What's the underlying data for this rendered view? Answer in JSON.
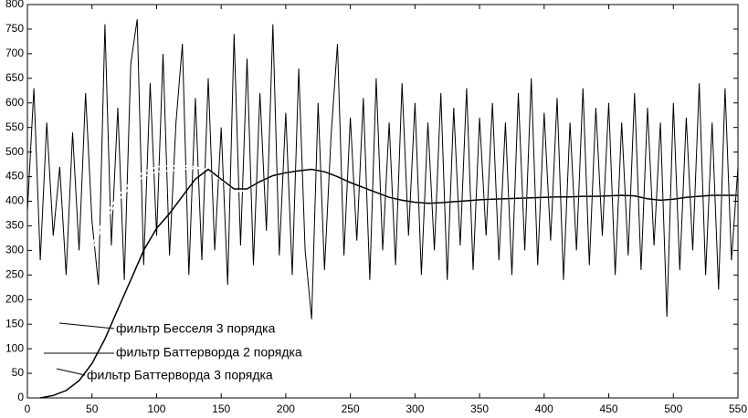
{
  "chart_data": {
    "type": "line",
    "xlim": [
      0,
      550
    ],
    "xticks": [
      0,
      50,
      100,
      150,
      200,
      250,
      300,
      350,
      400,
      450,
      500,
      550
    ],
    "ylim": [
      0,
      800
    ],
    "yticks": [
      0,
      50,
      100,
      150,
      200,
      250,
      300,
      350,
      400,
      450,
      500,
      550,
      600,
      650,
      700,
      750,
      800
    ],
    "noise": {
      "color": "#000000",
      "x": [
        0,
        5,
        10,
        15,
        20,
        25,
        30,
        35,
        40,
        45,
        50,
        55,
        60,
        65,
        70,
        75,
        80,
        85,
        90,
        95,
        100,
        105,
        110,
        115,
        120,
        125,
        130,
        135,
        140,
        145,
        150,
        155,
        160,
        165,
        170,
        175,
        180,
        185,
        190,
        195,
        200,
        205,
        210,
        215,
        220,
        225,
        230,
        235,
        240,
        245,
        250,
        255,
        260,
        265,
        270,
        275,
        280,
        285,
        290,
        295,
        300,
        305,
        310,
        315,
        320,
        325,
        330,
        335,
        340,
        345,
        350,
        355,
        360,
        365,
        370,
        375,
        380,
        385,
        390,
        395,
        400,
        405,
        410,
        415,
        420,
        425,
        430,
        435,
        440,
        445,
        450,
        455,
        460,
        465,
        470,
        475,
        480,
        485,
        490,
        495,
        500,
        505,
        510,
        515,
        520,
        525,
        530,
        535,
        540,
        545,
        550
      ],
      "values": [
        380,
        630,
        280,
        560,
        330,
        470,
        250,
        540,
        300,
        620,
        360,
        230,
        760,
        310,
        590,
        240,
        680,
        770,
        270,
        640,
        330,
        700,
        290,
        560,
        720,
        250,
        610,
        280,
        650,
        300,
        550,
        230,
        740,
        310,
        690,
        270,
        620,
        340,
        760,
        290,
        580,
        250,
        670,
        300,
        160,
        600,
        260,
        530,
        720,
        290,
        570,
        320,
        610,
        240,
        650,
        300,
        560,
        270,
        640,
        330,
        600,
        250,
        560,
        300,
        620,
        240,
        590,
        310,
        630,
        260,
        570,
        330,
        600,
        280,
        560,
        250,
        620,
        300,
        650,
        270,
        580,
        320,
        610,
        240,
        560,
        300,
        630,
        270,
        590,
        330,
        600,
        250,
        560,
        290,
        620,
        260,
        590,
        310,
        560,
        165,
        600,
        260,
        570,
        300,
        640,
        250,
        560,
        220,
        630,
        280,
        470
      ]
    },
    "series": [
      {
        "name": "фильтр Бесселя 3 порядка",
        "color": "#ffffff",
        "x": [
          40,
          50,
          60,
          70,
          80,
          90,
          100,
          110,
          120,
          130,
          140,
          150,
          160,
          165,
          170,
          180,
          190,
          200,
          210,
          220,
          230,
          240,
          250,
          260,
          270,
          280,
          290,
          300,
          310,
          320,
          330,
          340,
          350,
          360,
          370,
          380,
          390,
          400,
          410,
          420,
          430,
          440,
          450,
          460,
          470,
          480,
          490,
          500,
          510,
          520,
          530,
          540,
          550
        ],
        "values": [
          240,
          300,
          360,
          400,
          430,
          450,
          460,
          462,
          465,
          467,
          465,
          445,
          425,
          420,
          425,
          440,
          452,
          458,
          462,
          465,
          460,
          450,
          438,
          428,
          418,
          408,
          402,
          398,
          396,
          397,
          399,
          401,
          403,
          404,
          405,
          406,
          407,
          408,
          409,
          409,
          410,
          410,
          411,
          412,
          411,
          405,
          402,
          404,
          408,
          410,
          412,
          412,
          412
        ]
      },
      {
        "name": "фильтр Баттерворда 2 порядка",
        "color": "#ffffff",
        "x": [
          35,
          40,
          50,
          60,
          70,
          80,
          90,
          100,
          110,
          120,
          130,
          140,
          150,
          160,
          165,
          170,
          180,
          190,
          200,
          210,
          220,
          230,
          240,
          250,
          260,
          270,
          280,
          290,
          300,
          310,
          320,
          330,
          340,
          350,
          360,
          370,
          380,
          390,
          400,
          410,
          420,
          430,
          440,
          450,
          460,
          470,
          480,
          490,
          500,
          510,
          520,
          530,
          540,
          550
        ],
        "values": [
          220,
          250,
          310,
          370,
          410,
          440,
          460,
          470,
          472,
          472,
          470,
          463,
          443,
          424,
          419,
          424,
          440,
          452,
          458,
          462,
          465,
          460,
          450,
          438,
          428,
          418,
          408,
          402,
          398,
          396,
          397,
          399,
          401,
          403,
          404,
          405,
          406,
          407,
          408,
          409,
          409,
          410,
          410,
          411,
          412,
          411,
          405,
          402,
          404,
          408,
          410,
          412,
          412,
          412
        ]
      },
      {
        "name": "фильтр Баттерворда 3 порядка",
        "color": "#000000",
        "x": [
          10,
          20,
          30,
          40,
          50,
          60,
          70,
          80,
          90,
          100,
          110,
          120,
          130,
          140,
          150,
          160,
          170,
          180,
          190,
          200,
          210,
          220,
          230,
          240,
          250,
          260,
          270,
          280,
          290,
          300,
          310,
          320,
          330,
          340,
          350,
          360,
          370,
          380,
          390,
          400,
          410,
          420,
          430,
          440,
          450,
          460,
          470,
          480,
          490,
          500,
          510,
          520,
          530,
          540,
          550
        ],
        "values": [
          0,
          5,
          15,
          35,
          70,
          120,
          180,
          240,
          300,
          345,
          375,
          410,
          445,
          465,
          445,
          425,
          425,
          440,
          452,
          458,
          462,
          465,
          460,
          450,
          438,
          428,
          418,
          408,
          402,
          398,
          396,
          397,
          399,
          401,
          403,
          404,
          405,
          406,
          407,
          408,
          409,
          409,
          410,
          410,
          411,
          412,
          411,
          405,
          402,
          404,
          408,
          410,
          412,
          412,
          412
        ]
      }
    ]
  }
}
